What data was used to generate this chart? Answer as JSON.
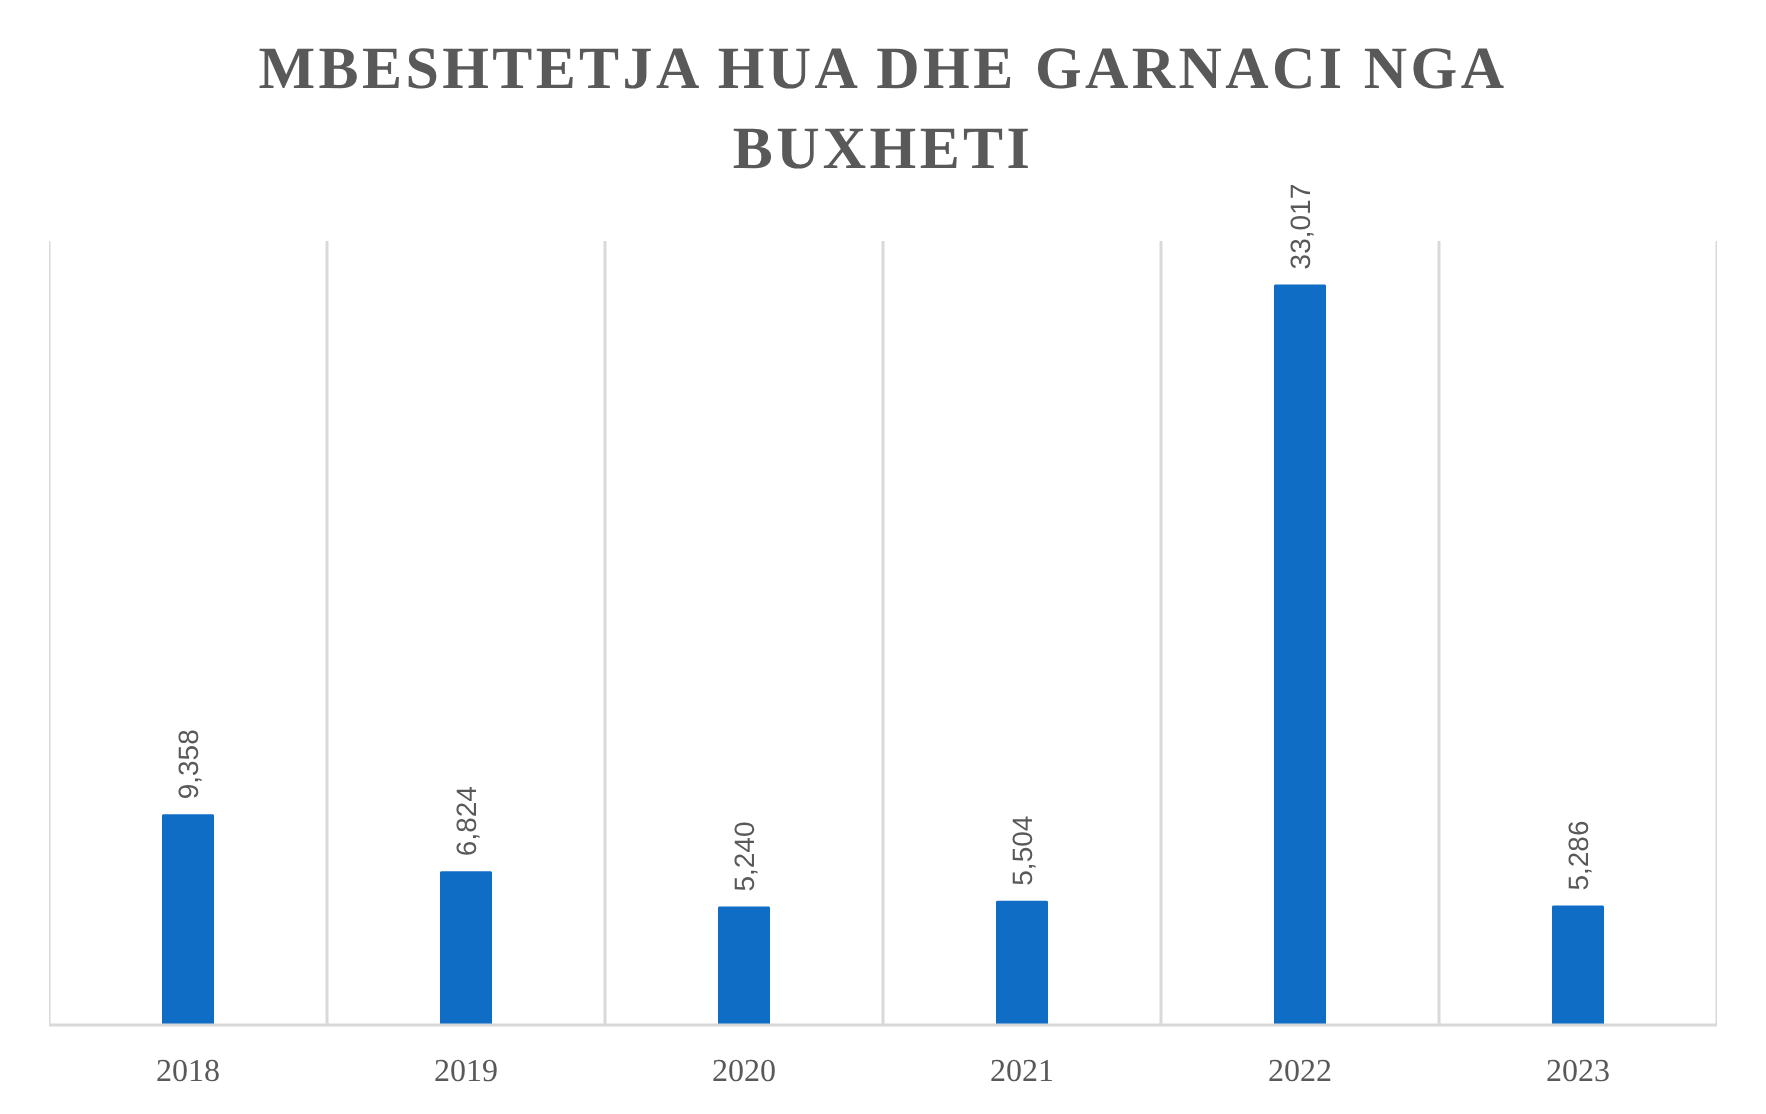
{
  "chart_data": {
    "type": "bar",
    "title": "MBESHTETJA HUA DHE GARNACI NGA BUXHETI",
    "categories": [
      "2018",
      "2019",
      "2020",
      "2021",
      "2022",
      "2023"
    ],
    "values": [
      9358,
      6824,
      5240,
      5504,
      33017,
      5286
    ],
    "value_labels": [
      "9,358",
      "6,824",
      "5,240",
      "5,504",
      "33,017",
      "5,286"
    ],
    "color": "#106dc6",
    "grid": "x"
  }
}
